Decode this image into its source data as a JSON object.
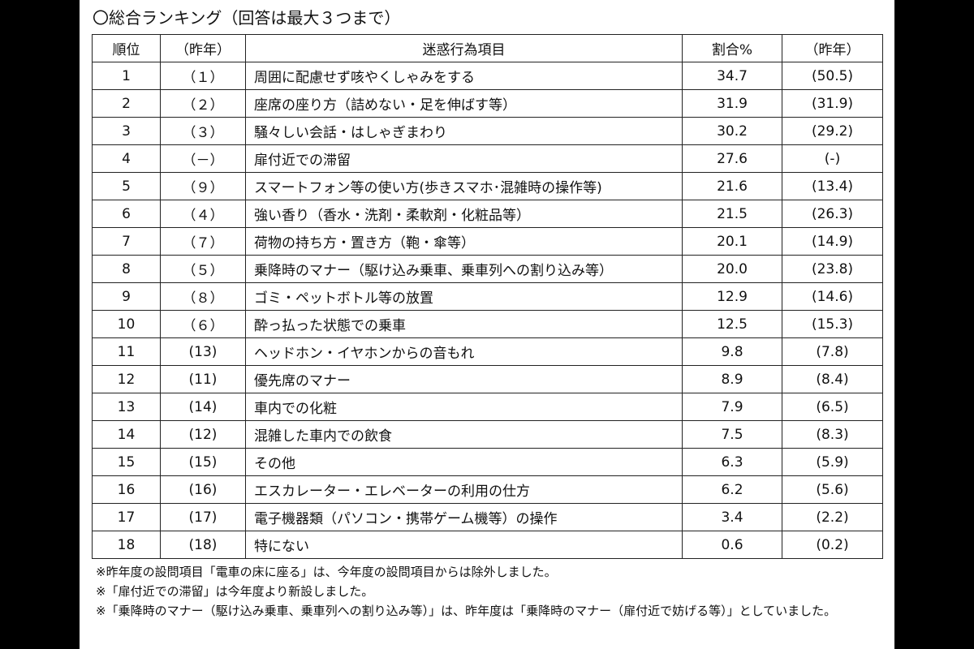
{
  "title": "〇総合ランキング（回答は最大３つまで）",
  "table": {
    "header": [
      "順位",
      "（昨年）",
      "迷惑行為項目",
      "割合%",
      "（昨年）"
    ],
    "rows": [
      [
        "1",
        "（１）",
        "周囲に配慮せず咳やくしゃみをする",
        "34.7",
        "(50.5)"
      ],
      [
        "2",
        "（２）",
        "座席の座り方（詰めない・足を伸ばす等）",
        "31.9",
        "(31.9)"
      ],
      [
        "3",
        "（３）",
        "騒々しい会話・はしゃぎまわり",
        "30.2",
        "(29.2)"
      ],
      [
        "4",
        "（－）",
        "扉付近での滞留",
        "27.6",
        "(-)"
      ],
      [
        "5",
        "（９）",
        "スマートフォン等の使い方(歩きスマホ･混雑時の操作等)",
        "21.6",
        "(13.4)"
      ],
      [
        "6",
        "（４）",
        "強い香り（香水・洗剤・柔軟剤・化粧品等）",
        "21.5",
        "(26.3)"
      ],
      [
        "7",
        "（７）",
        "荷物の持ち方・置き方（鞄・傘等）",
        "20.1",
        "(14.9)"
      ],
      [
        "8",
        "（５）",
        "乗降時のマナー（駆け込み乗車、乗車列への割り込み等）",
        "20.0",
        "(23.8)"
      ],
      [
        "9",
        "（８）",
        "ゴミ・ペットボトル等の放置",
        "12.9",
        "(14.6)"
      ],
      [
        "10",
        "（６）",
        "酔っ払った状態での乗車",
        "12.5",
        "(15.3)"
      ],
      [
        "11",
        "(13)",
        "ヘッドホン・イヤホンからの音もれ",
        "9.8",
        "(7.8)"
      ],
      [
        "12",
        "(11)",
        "優先席のマナー",
        "8.9",
        "(8.4)"
      ],
      [
        "13",
        "(14)",
        "車内での化粧",
        "7.9",
        "(6.5)"
      ],
      [
        "14",
        "(12)",
        "混雑した車内での飲食",
        "7.5",
        "(8.3)"
      ],
      [
        "15",
        "(15)",
        "その他",
        "6.3",
        "(5.9)"
      ],
      [
        "16",
        "(16)",
        "エスカレーター・エレベーターの利用の仕方",
        "6.2",
        "(5.6)"
      ],
      [
        "17",
        "(17)",
        "電子機器類（パソコン・携帯ゲーム機等）の操作",
        "3.4",
        "(2.2)"
      ],
      [
        "18",
        "(18)",
        "特にない",
        "0.6",
        "(0.2)"
      ]
    ]
  },
  "notes": [
    "※昨年度の設問項目「電車の床に座る」は、今年度の設問項目からは除外しました。",
    "※「扉付近での滞留」は今年度より新設しました。",
    "※「乗降時のマナー（駆け込み乗車、乗車列への割り込み等）」は、昨年度は「乗降時のマナー（扉付近で妨げる等）」としていました。"
  ]
}
